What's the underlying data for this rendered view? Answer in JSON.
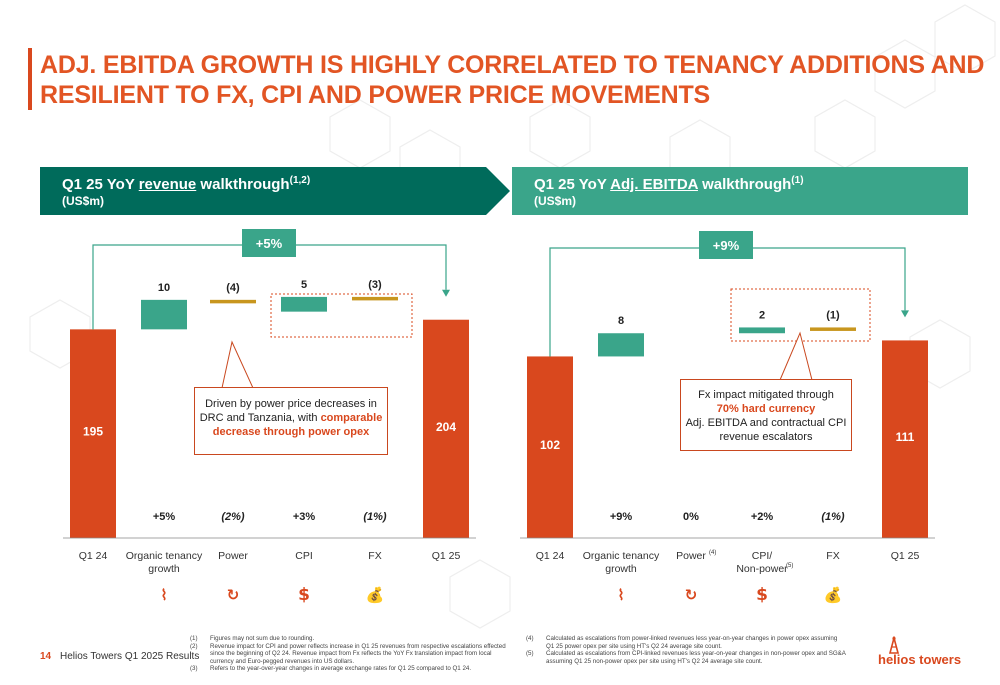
{
  "page": {
    "title_lines": [
      "ADJ. EBITDA GROWTH IS HIGHLY CORRELATED TO TENANCY ADDITIONS AND",
      "RESILIENT TO FX, CPI AND POWER PRICE MOVEMENTS"
    ],
    "page_number": "14",
    "source": "Helios Towers Q1 2025 Results",
    "logo_text": "helios towers"
  },
  "colors": {
    "accent_orange": "#d9481e",
    "dark_green": "#006b5b",
    "light_green": "#3aa58a",
    "mustard": "#c8961e",
    "teal_bar": "#3aa58a"
  },
  "left_panel": {
    "heading_pre": "Q1 25 YoY ",
    "heading_ul": "revenue",
    "heading_post": " walkthrough",
    "heading_sup": "(1,2)",
    "subheading": "(US$m)",
    "growth_badge": "+5%",
    "callout": {
      "line1": "Driven by power price decreases in",
      "line2": "DRC and Tanzania, with ",
      "hl1": "comparable",
      "hl2": "decrease through power opex"
    }
  },
  "right_panel": {
    "heading_pre": "Q1 25 YoY ",
    "heading_ul": "Adj. EBITDA",
    "heading_post": " walkthrough",
    "heading_sup": "(1)",
    "subheading": "(US$m)",
    "growth_badge": "+9%",
    "callout": {
      "line1": "Fx impact mitigated through",
      "hl1": "70% hard currency",
      "line3": "Adj. EBITDA and contractual CPI",
      "line4": "revenue escalators"
    }
  },
  "icons": [
    "tower-icon",
    "power-icon",
    "dollar-icon",
    "moneybag-icon"
  ],
  "chart_data": [
    {
      "type": "bar",
      "title": "Q1 25 YoY revenue walkthrough(1,2)",
      "subtitle": "(US$m)",
      "categories": [
        "Q1 24",
        "Organic tenancy growth",
        "Power",
        "CPI",
        "FX",
        "Q1 25"
      ],
      "category_label_lines": [
        [
          "Q1 24"
        ],
        [
          "Organic tenancy",
          "growth"
        ],
        [
          "Power"
        ],
        [
          "CPI"
        ],
        [
          "FX"
        ],
        [
          "Q1 25"
        ]
      ],
      "values": [
        195,
        10,
        -4,
        5,
        -3,
        204
      ],
      "kinds": [
        "total",
        "delta",
        "delta",
        "delta",
        "delta",
        "total"
      ],
      "value_labels": [
        "195",
        "10",
        "(4)",
        "5",
        "(3)",
        "204"
      ],
      "pct_labels": [
        "",
        "+5%",
        "(2%)",
        "+3%",
        "(1%)",
        ""
      ],
      "growth": "+5%"
    },
    {
      "type": "bar",
      "title": "Q1 25 YoY Adj. EBITDA walkthrough(1)",
      "subtitle": "(US$m)",
      "categories": [
        "Q1 24",
        "Organic tenancy growth",
        "Power(4)",
        "CPI/ Non-power(5)",
        "FX",
        "Q1 25"
      ],
      "category_label_lines": [
        [
          "Q1 24"
        ],
        [
          "Organic tenancy",
          "growth"
        ],
        [
          "Power"
        ],
        [
          "CPI/",
          "Non-power"
        ],
        [
          "FX"
        ],
        [
          "Q1 25"
        ]
      ],
      "category_sups": [
        "",
        "",
        "(4)",
        "(5)",
        "",
        ""
      ],
      "values": [
        102,
        8,
        0,
        2,
        -1,
        111
      ],
      "kinds": [
        "total",
        "delta",
        "delta",
        "delta",
        "delta",
        "total"
      ],
      "value_labels": [
        "102",
        "8",
        "",
        "2",
        "(1)",
        "111"
      ],
      "pct_labels": [
        "",
        "+9%",
        "0%",
        "+2%",
        "(1%)",
        ""
      ],
      "growth": "+9%"
    }
  ],
  "footnotes_left": [
    {
      "k": "(1)",
      "t": "Figures may not sum due to rounding."
    },
    {
      "k": "(2)",
      "t": "Revenue impact for CPI and power reflects increase in Q1 25 revenues from respective escalations effected since the beginning of Q2 24. Revenue impact from Fx reflects the YoY Fx translation impact from local currency and Euro-pegged revenues into US dollars."
    },
    {
      "k": "(3)",
      "t": "Refers to the year-over-year changes in average exchange rates for Q1 25 compared to Q1 24."
    }
  ],
  "footnotes_right": [
    {
      "k": "(4)",
      "t": "Calculated as escalations from power-linked revenues less year-on-year changes in power opex assuming Q1 25 power opex per site using HT's Q2 24 average site count."
    },
    {
      "k": "(5)",
      "t": "Calculated as escalations from CPI-linked revenues less year-on-year changes in non-power opex and SG&A assuming Q1 25 non-power opex per site using HT's Q2 24 average site count."
    }
  ]
}
